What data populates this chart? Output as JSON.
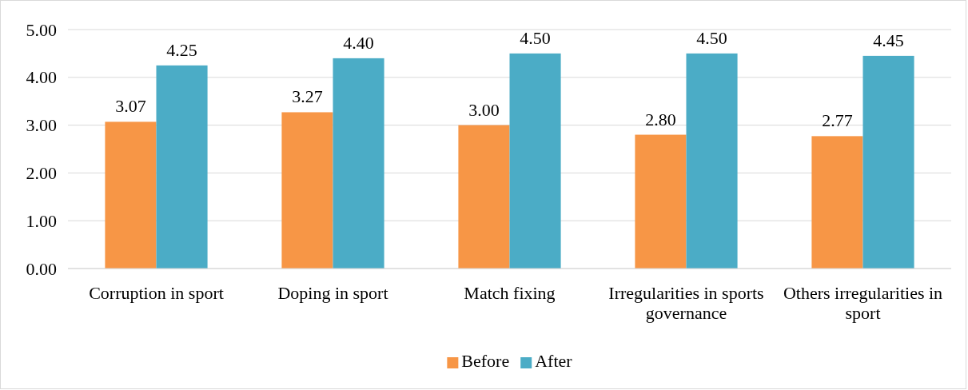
{
  "chart_data": {
    "type": "bar",
    "categories": [
      "Corruption in sport",
      "Doping in sport",
      "Match fixing",
      "Irregularities in sports governance",
      "Others irregularities in sport"
    ],
    "series": [
      {
        "name": "Before",
        "color": "#f79646",
        "values": [
          3.07,
          3.27,
          3.0,
          2.8,
          2.77
        ],
        "value_labels": [
          "3.07",
          "3.27",
          "3.00",
          "2.80",
          "2.77"
        ]
      },
      {
        "name": "After",
        "color": "#4bacc6",
        "values": [
          4.25,
          4.4,
          4.5,
          4.5,
          4.45
        ],
        "value_labels": [
          "4.25",
          "4.40",
          "4.50",
          "4.50",
          "4.45"
        ]
      }
    ],
    "ylim": [
      0,
      5
    ],
    "yticks": [
      {
        "value": 0,
        "label": "0.00"
      },
      {
        "value": 1,
        "label": "1.00"
      },
      {
        "value": 2,
        "label": "2.00"
      },
      {
        "value": 3,
        "label": "3.00"
      },
      {
        "value": 4,
        "label": "4.00"
      },
      {
        "value": 5,
        "label": "5.00"
      }
    ],
    "grid": "y",
    "legend": "bottom"
  }
}
